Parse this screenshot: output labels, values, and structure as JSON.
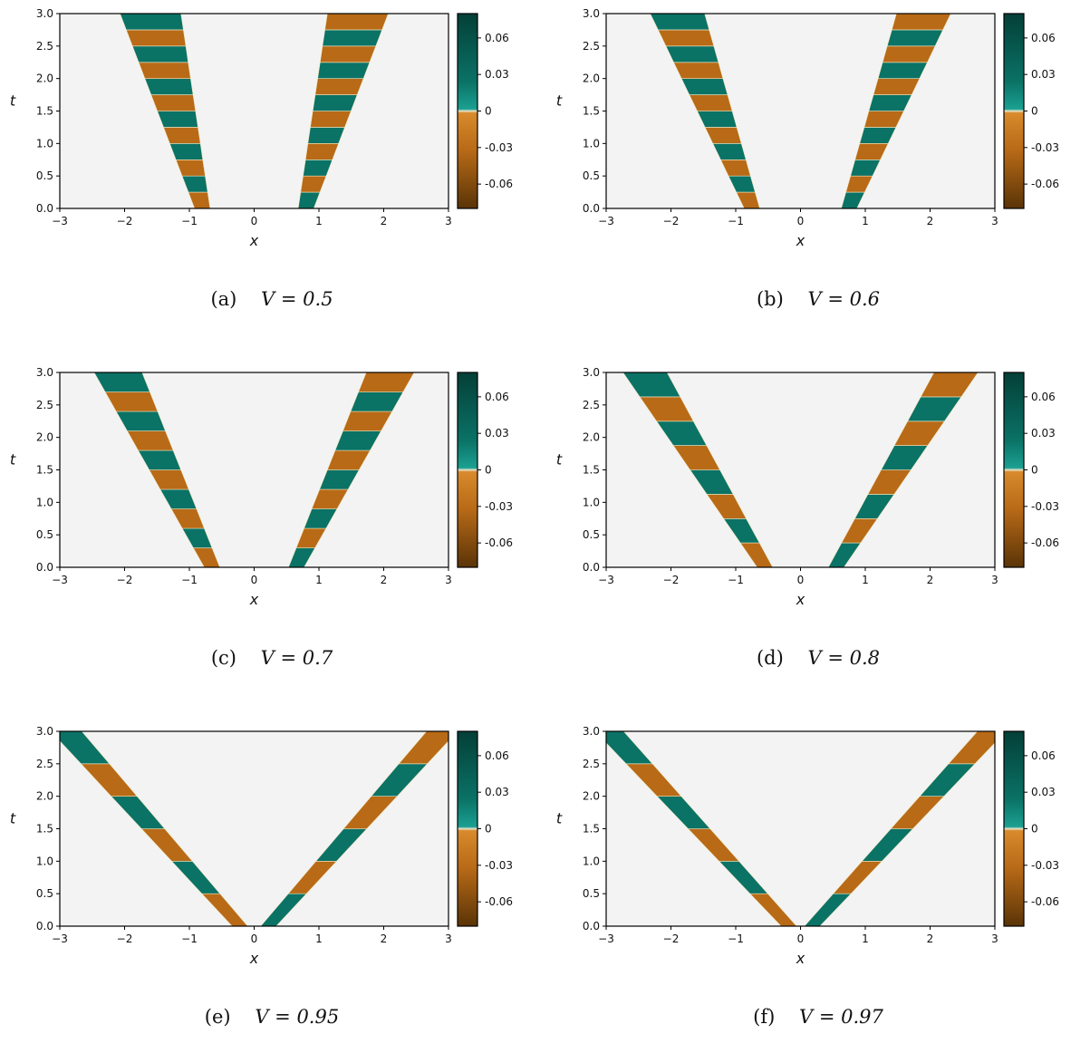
{
  "chart_data": [
    {
      "type": "heatmap",
      "panel": "(a)",
      "caption": "V = 0.5",
      "V": 0.5,
      "xlabel": "x",
      "ylabel": "t",
      "xlim": [
        -3,
        3
      ],
      "ylim": [
        0,
        3
      ],
      "xticks": [
        "−3",
        "−2",
        "−1",
        "0",
        "1",
        "2",
        "3"
      ],
      "yticks": [
        "0.0",
        "0.5",
        "1.0",
        "1.5",
        "2.0",
        "2.5",
        "3.0"
      ],
      "colorbar": {
        "range": [
          -0.08,
          0.08
        ],
        "ticks": [
          0.06,
          0.03,
          0,
          -0.03,
          -0.06
        ],
        "ticklabels": [
          "0.06",
          "0.03",
          "0",
          "-0.03",
          "-0.06"
        ]
      },
      "band": {
        "x0": 0.8,
        "x1": 1.6,
        "half_width_bottom": 0.0,
        "half_width_top": 0.35,
        "stripes": 6
      }
    },
    {
      "type": "heatmap",
      "panel": "(b)",
      "caption": "V = 0.6",
      "V": 0.6,
      "xlabel": "x",
      "ylabel": "t",
      "xlim": [
        -3,
        3
      ],
      "ylim": [
        0,
        3
      ],
      "xticks": [
        "−3",
        "−2",
        "−1",
        "0",
        "1",
        "2",
        "3"
      ],
      "yticks": [
        "0.0",
        "0.5",
        "1.0",
        "1.5",
        "2.0",
        "2.5",
        "3.0"
      ],
      "colorbar": {
        "range": [
          -0.08,
          0.08
        ],
        "ticks": [
          0.06,
          0.03,
          0,
          -0.03,
          -0.06
        ],
        "ticklabels": [
          "0.06",
          "0.03",
          "0",
          "-0.03",
          "-0.06"
        ]
      },
      "band": {
        "x0": 0.75,
        "x1": 1.9,
        "half_width_bottom": 0.0,
        "half_width_top": 0.3,
        "stripes": 6
      }
    },
    {
      "type": "heatmap",
      "panel": "(c)",
      "caption": "V = 0.7",
      "V": 0.7,
      "xlabel": "x",
      "ylabel": "t",
      "xlim": [
        -3,
        3
      ],
      "ylim": [
        0,
        3
      ],
      "xticks": [
        "−3",
        "−2",
        "−1",
        "0",
        "1",
        "2",
        "3"
      ],
      "yticks": [
        "0.0",
        "0.5",
        "1.0",
        "1.5",
        "2.0",
        "2.5",
        "3.0"
      ],
      "colorbar": {
        "range": [
          -0.08,
          0.08
        ],
        "ticks": [
          0.06,
          0.03,
          0,
          -0.03,
          -0.06
        ],
        "ticklabels": [
          "0.06",
          "0.03",
          "0",
          "-0.03",
          "-0.06"
        ]
      },
      "band": {
        "x0": 0.65,
        "x1": 2.1,
        "half_width_bottom": 0.0,
        "half_width_top": 0.25,
        "stripes": 5
      }
    },
    {
      "type": "heatmap",
      "panel": "(d)",
      "caption": "V = 0.8",
      "V": 0.8,
      "xlabel": "x",
      "ylabel": "t",
      "xlim": [
        -3,
        3
      ],
      "ylim": [
        0,
        3
      ],
      "xticks": [
        "−3",
        "−2",
        "−1",
        "0",
        "1",
        "2",
        "3"
      ],
      "yticks": [
        "0.0",
        "0.5",
        "1.0",
        "1.5",
        "2.0",
        "2.5",
        "3.0"
      ],
      "colorbar": {
        "range": [
          -0.08,
          0.08
        ],
        "ticks": [
          0.06,
          0.03,
          0,
          -0.03,
          -0.06
        ],
        "ticklabels": [
          "0.06",
          "0.03",
          "0",
          "-0.03",
          "-0.06"
        ]
      },
      "band": {
        "x0": 0.55,
        "x1": 2.4,
        "half_width_bottom": 0.0,
        "half_width_top": 0.22,
        "stripes": 4
      }
    },
    {
      "type": "heatmap",
      "panel": "(e)",
      "caption": "V = 0.95",
      "V": 0.95,
      "xlabel": "x",
      "ylabel": "t",
      "xlim": [
        -3,
        3
      ],
      "ylim": [
        0,
        3
      ],
      "xticks": [
        "−3",
        "−2",
        "−1",
        "0",
        "1",
        "2",
        "3"
      ],
      "yticks": [
        "0.0",
        "0.5",
        "1.0",
        "1.5",
        "2.0",
        "2.5",
        "3.0"
      ],
      "colorbar": {
        "range": [
          -0.08,
          0.08
        ],
        "ticks": [
          0.06,
          0.03,
          0,
          -0.03,
          -0.06
        ],
        "ticklabels": [
          "0.06",
          "0.03",
          "0",
          "-0.03",
          "-0.06"
        ]
      },
      "band": {
        "x0": 0.22,
        "x1": 2.9,
        "half_width_bottom": 0.0,
        "half_width_top": 0.12,
        "stripes": 3
      }
    },
    {
      "type": "heatmap",
      "panel": "(f)",
      "caption": "V = 0.97",
      "V": 0.97,
      "xlabel": "x",
      "ylabel": "t",
      "xlim": [
        -3,
        3
      ],
      "ylim": [
        0,
        3
      ],
      "xticks": [
        "−3",
        "−2",
        "−1",
        "0",
        "1",
        "2",
        "3"
      ],
      "yticks": [
        "0.0",
        "0.5",
        "1.0",
        "1.5",
        "2.0",
        "2.5",
        "3.0"
      ],
      "colorbar": {
        "range": [
          -0.08,
          0.08
        ],
        "ticks": [
          0.06,
          0.03,
          0,
          -0.03,
          -0.06
        ],
        "ticklabels": [
          "0.06",
          "0.03",
          "0",
          "-0.03",
          "-0.06"
        ]
      },
      "band": {
        "x0": 0.18,
        "x1": 2.95,
        "half_width_bottom": 0.0,
        "half_width_top": 0.1,
        "stripes": 3
      }
    }
  ],
  "colors": {
    "background": "#f3f3f3",
    "teal": "#0b7266",
    "teal_dark": "#033f37",
    "teal_light": "#1aa091",
    "orange": "#b86a17",
    "orange_dark": "#5a3407",
    "orange_light": "#d88a2c",
    "edge": "#f0e8c0"
  },
  "captions": [
    {
      "label": "(a)",
      "eq": "V = 0.5"
    },
    {
      "label": "(b)",
      "eq": "V = 0.6"
    },
    {
      "label": "(c)",
      "eq": "V = 0.7"
    },
    {
      "label": "(d)",
      "eq": "V = 0.8"
    },
    {
      "label": "(e)",
      "eq": "V = 0.95"
    },
    {
      "label": "(f)",
      "eq": "V = 0.97"
    }
  ]
}
